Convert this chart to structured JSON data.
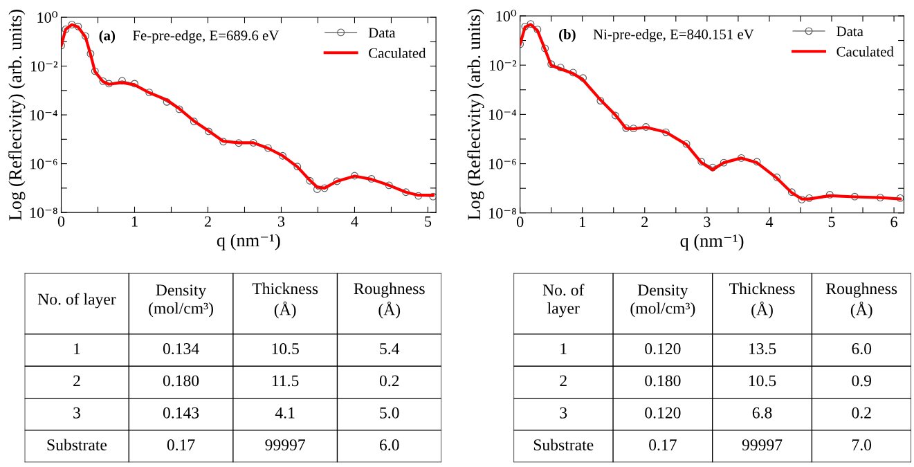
{
  "chart_data": [
    {
      "type": "line",
      "annotations": [
        "(a)",
        "Fe-pre-edge, E=689.6 eV"
      ],
      "xlabel": "q (nm⁻¹)",
      "ylabel": "Log (Reflecivity) (arb. units)",
      "log": "y",
      "legend": "top right",
      "line_style": "solid",
      "grid": false,
      "xlim": [
        0,
        5.11
      ],
      "ylim": [
        1e-08,
        1
      ],
      "xticks": [
        0,
        {
          "value": 0.5,
          "label": null
        },
        1,
        {
          "value": 1.5,
          "label": null
        },
        2,
        {
          "value": 2.5,
          "label": null
        },
        3,
        {
          "value": 3.5,
          "label": null
        },
        4,
        {
          "value": 4.5,
          "label": null
        },
        5
      ],
      "yticks": [
        {
          "value": 1e-08,
          "label": "10⁻⁸"
        },
        {
          "value": 1e-07,
          "label": null
        },
        {
          "value": 1e-06,
          "label": "10⁻⁶"
        },
        {
          "value": 1e-05,
          "label": null
        },
        {
          "value": 0.0001,
          "label": "10⁻⁴"
        },
        {
          "value": 0.001,
          "label": null
        },
        {
          "value": 0.01,
          "label": "10⁻²"
        },
        {
          "value": 0.1,
          "label": null
        },
        {
          "value": 1,
          "label": "10⁰"
        }
      ],
      "x": [
        0,
        0.06,
        0.145,
        0.23,
        0.33,
        0.4,
        0.46,
        0.57,
        0.65,
        0.83,
        1.0,
        1.2,
        1.44,
        1.61,
        1.81,
        2.01,
        2.21,
        2.42,
        2.62,
        2.82,
        3.02,
        3.22,
        3.39,
        3.49,
        3.59,
        3.76,
        4.0,
        4.23,
        4.47,
        4.7,
        4.87,
        5.07
      ],
      "series": [
        {
          "name": "Data",
          "color": "#555555",
          "marker": "circle",
          "values": [
            0.069,
            0.32,
            0.5,
            0.42,
            0.17,
            0.032,
            0.0062,
            0.0024,
            0.0019,
            0.0025,
            0.0019,
            0.00083,
            0.00034,
            0.00017,
            5.4e-05,
            2.1e-05,
            8e-06,
            7e-06,
            7.2e-06,
            4.4e-06,
            2.1e-06,
            7.6e-07,
            2e-07,
            9e-08,
            1e-07,
            1.9e-07,
            3.2e-07,
            2.4e-07,
            1.3e-07,
            6.8e-08,
            4.8e-08,
            4.5e-08
          ]
        },
        {
          "name": "Caculated",
          "color": "#ff0000",
          "marker": "none",
          "values": [
            0.069,
            0.32,
            0.5,
            0.4,
            0.155,
            0.03,
            0.0059,
            0.0023,
            0.0018,
            0.0021,
            0.0017,
            0.00081,
            0.00041,
            0.00018,
            5.6e-05,
            2.2e-05,
            8.3e-06,
            7.2e-06,
            7.2e-06,
            4.3e-06,
            2.1e-06,
            7.4e-07,
            2.1e-07,
            1.1e-07,
            1e-07,
            1.9e-07,
            3.1e-07,
            2.3e-07,
            1.3e-07,
            6.8e-08,
            5.1e-08,
            5.1e-08
          ]
        }
      ]
    },
    {
      "type": "line",
      "annotations": [
        "(b)",
        "Ni-pre-edge, E=840.151 eV"
      ],
      "xlabel": "q (nm⁻¹)",
      "ylabel": "Log (Reflecivity) (arb. units)",
      "log": "y",
      "legend": "top right",
      "line_style": "solid",
      "grid": false,
      "xlim": [
        0,
        6.16
      ],
      "ylim": [
        1e-08,
        1
      ],
      "xticks": [
        0,
        {
          "value": 0.5,
          "label": null
        },
        1,
        {
          "value": 1.5,
          "label": null
        },
        2,
        {
          "value": 2.5,
          "label": null
        },
        3,
        {
          "value": 3.5,
          "label": null
        },
        4,
        {
          "value": 4.5,
          "label": null
        },
        5,
        {
          "value": 5.5,
          "label": null
        },
        6
      ],
      "yticks": [
        {
          "value": 1e-08,
          "label": "10⁻⁸"
        },
        {
          "value": 1e-07,
          "label": null
        },
        {
          "value": 1e-06,
          "label": "10⁻⁶"
        },
        {
          "value": 1e-05,
          "label": null
        },
        {
          "value": 0.0001,
          "label": "10⁻⁴"
        },
        {
          "value": 0.001,
          "label": null
        },
        {
          "value": 0.01,
          "label": "10⁻²"
        },
        {
          "value": 0.1,
          "label": null
        },
        {
          "value": 1,
          "label": "10⁰"
        }
      ],
      "x": [
        0,
        0.08,
        0.17,
        0.28,
        0.4,
        0.5,
        0.65,
        0.85,
        1.01,
        1.29,
        1.53,
        1.7,
        1.82,
        2.02,
        2.34,
        2.67,
        2.91,
        3.09,
        3.27,
        3.55,
        3.8,
        4.12,
        4.36,
        4.52,
        4.64,
        4.97,
        5.37,
        5.78,
        6.1
      ],
      "series": [
        {
          "name": "Data",
          "color": "#555555",
          "marker": "circle",
          "values": [
            0.071,
            0.37,
            0.47,
            0.28,
            0.048,
            0.011,
            0.008,
            0.005,
            0.003,
            0.00036,
            9e-05,
            2.8e-05,
            2.7e-05,
            3.1e-05,
            1.9e-05,
            6.3e-06,
            1.2e-06,
            7e-07,
            1.1e-06,
            1.7e-06,
            1.2e-06,
            2.8e-07,
            7e-08,
            3.5e-08,
            4e-08,
            5.5e-08,
            4.6e-08,
            4.2e-08,
            4e-08
          ]
        },
        {
          "name": "Caculated",
          "color": "#ff0000",
          "marker": "none",
          "values": [
            0.071,
            0.35,
            0.45,
            0.25,
            0.044,
            0.0098,
            0.0069,
            0.0046,
            0.0025,
            0.00039,
            9.5e-05,
            2.7e-05,
            2.6e-05,
            3e-05,
            1.9e-05,
            6e-06,
            1.1e-06,
            5.6e-07,
            1.1e-06,
            1.7e-06,
            1.1e-06,
            2.6e-07,
            6.6e-08,
            3.7e-08,
            3.7e-08,
            5e-08,
            4.5e-08,
            4.2e-08,
            3.7e-08
          ]
        }
      ]
    },
    {
      "type": "other",
      "categories": [
        "No. of layer",
        "Density\n(mol/cm³)",
        "Thickness\n(Å)",
        "Roughness\n(Å)"
      ],
      "annotations": [
        "1",
        "0.134",
        "10.5",
        "5.4",
        "2",
        "0.180",
        "11.5",
        "0.2",
        "3",
        "0.143",
        "4.1",
        "5.0",
        "Substrate",
        "0.17",
        "99997",
        "6.0"
      ]
    },
    {
      "type": "other",
      "categories": [
        "No. of\nlayer",
        "Density\n(mol/cm³)",
        "Thickness\n(Å)",
        "Roughness\n(Å)"
      ],
      "annotations": [
        "1",
        "0.120",
        "13.5",
        "6.0",
        "2",
        "0.180",
        "10.5",
        "0.9",
        "3",
        "0.120",
        "6.8",
        "0.2",
        "Substrate",
        "0.17",
        "99997",
        "7.0"
      ]
    }
  ]
}
